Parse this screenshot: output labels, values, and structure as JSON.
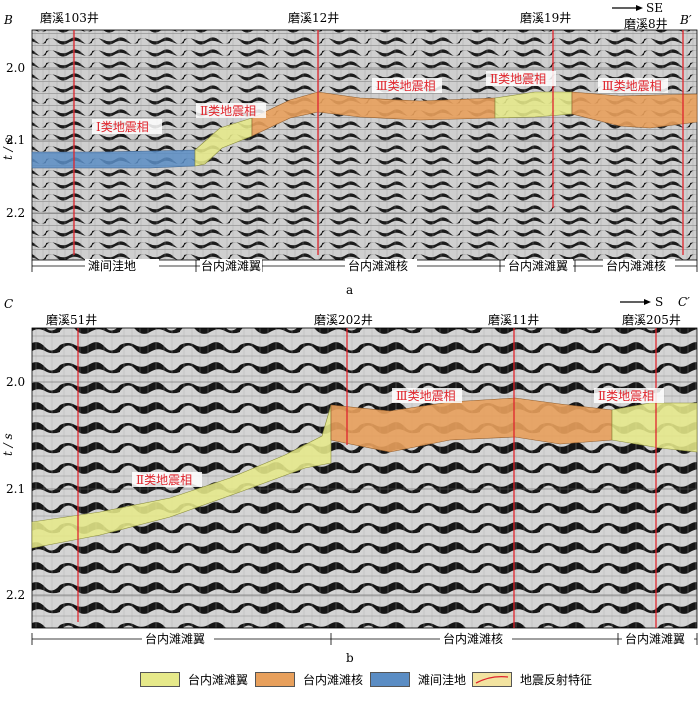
{
  "panel_a": {
    "corner_left": "B",
    "corner_right": "B′",
    "direction": "SE",
    "wells": [
      "磨溪103井",
      "磨溪12井",
      "磨溪19井",
      "磨溪8井"
    ],
    "y_axis_label": "t / s",
    "y_ticks": [
      "2.0",
      "2.1",
      "2.2"
    ],
    "facies_labels": [
      "Ⅰ类地震相",
      "Ⅱ类地震相",
      "Ⅲ类地震相",
      "Ⅱ类地震相",
      "Ⅲ类地震相"
    ],
    "zones": [
      "滩间洼地",
      "台内滩滩翼",
      "台内滩滩核",
      "台内滩滩翼",
      "台内滩滩核"
    ],
    "caption": "a"
  },
  "panel_b": {
    "corner_left": "C",
    "corner_right": "C′",
    "direction": "S",
    "wells": [
      "磨溪51井",
      "磨溪202井",
      "磨溪11井",
      "磨溪205井"
    ],
    "y_axis_label": "t / s",
    "y_ticks": [
      "2.0",
      "2.1",
      "2.2"
    ],
    "facies_labels": [
      "Ⅱ类地震相",
      "Ⅲ类地震相",
      "Ⅱ类地震相"
    ],
    "zones": [
      "台内滩滩翼",
      "台内滩滩核",
      "台内滩滩翼"
    ],
    "caption": "b"
  },
  "legend": [
    {
      "label": "台内滩滩翼",
      "color": "#e6e98a"
    },
    {
      "label": "台内滩滩核",
      "color": "#e8a05c"
    },
    {
      "label": "滩间洼地",
      "color": "#5b8dc4"
    },
    {
      "label": "地震反射特征",
      "color": "#f2e3a0"
    }
  ],
  "colors": {
    "well_line": "#e0242c",
    "label_red": "#e0242c"
  }
}
